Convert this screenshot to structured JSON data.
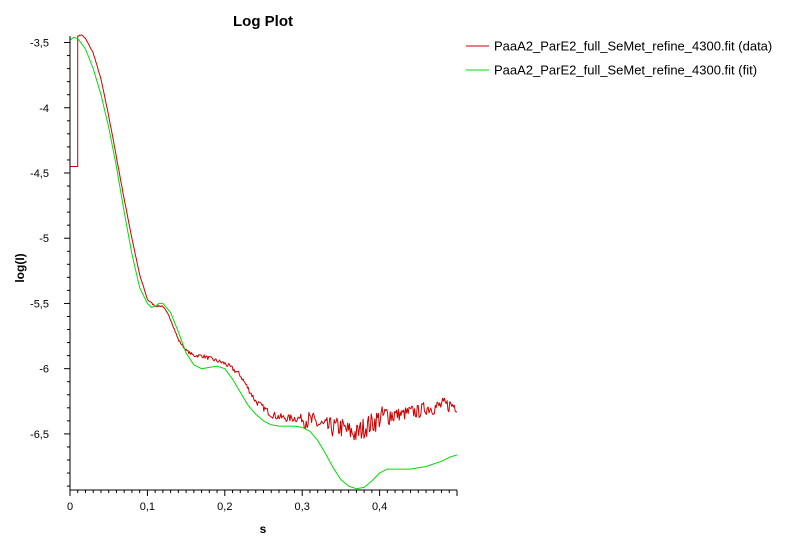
{
  "chart_data": {
    "type": "line",
    "title": "Log Plot",
    "xlabel": "s",
    "ylabel": "log(I)",
    "xlim": [
      0,
      0.5
    ],
    "ylim": [
      -6.93,
      -3.45
    ],
    "grid": false,
    "legend_position": "top-right",
    "x_ticks": [
      {
        "value": 0,
        "label": "0"
      },
      {
        "value": 0.1,
        "label": "0,1"
      },
      {
        "value": 0.2,
        "label": "0,2"
      },
      {
        "value": 0.3,
        "label": "0,3"
      },
      {
        "value": 0.4,
        "label": "0,4"
      }
    ],
    "y_ticks": [
      {
        "value": -3.5,
        "label": "-3,5"
      },
      {
        "value": -4,
        "label": "-4"
      },
      {
        "value": -4.5,
        "label": "-4,5"
      },
      {
        "value": -5,
        "label": "-5"
      },
      {
        "value": -5.5,
        "label": "-5,5"
      },
      {
        "value": -6,
        "label": "-6"
      },
      {
        "value": -6.5,
        "label": "-6,5"
      }
    ],
    "series": [
      {
        "name": "PaaA2_ParE2_full_SeMet_refine_4300.fit (data)",
        "color": "#cc0000",
        "style": "noisy",
        "x": [
          0,
          0,
          0.01,
          0.01,
          0.015,
          0.02,
          0.03,
          0.04,
          0.05,
          0.06,
          0.07,
          0.08,
          0.09,
          0.1,
          0.11,
          0.12,
          0.13,
          0.14,
          0.15,
          0.16,
          0.17,
          0.18,
          0.19,
          0.2,
          0.21,
          0.22,
          0.23,
          0.24,
          0.25,
          0.26,
          0.27,
          0.28,
          0.29,
          0.3,
          0.31,
          0.32,
          0.33,
          0.34,
          0.35,
          0.36,
          0.37,
          0.38,
          0.39,
          0.4,
          0.41,
          0.42,
          0.43,
          0.44,
          0.45,
          0.46,
          0.47,
          0.48,
          0.49,
          0.5
        ],
        "y": [
          -4.45,
          -4.45,
          -4.45,
          -3.45,
          -3.44,
          -3.47,
          -3.58,
          -3.78,
          -4.06,
          -4.38,
          -4.7,
          -5.0,
          -5.28,
          -5.47,
          -5.52,
          -5.52,
          -5.62,
          -5.78,
          -5.86,
          -5.9,
          -5.9,
          -5.92,
          -5.94,
          -5.96,
          -6.0,
          -6.05,
          -6.15,
          -6.25,
          -6.3,
          -6.35,
          -6.37,
          -6.38,
          -6.38,
          -6.38,
          -6.4,
          -6.42,
          -6.45,
          -6.45,
          -6.45,
          -6.48,
          -6.5,
          -6.45,
          -6.42,
          -6.38,
          -6.35,
          -6.35,
          -6.35,
          -6.33,
          -6.33,
          -6.3,
          -6.3,
          -6.28,
          -6.28,
          -6.28
        ]
      },
      {
        "name": "PaaA2_ParE2_full_SeMet_refine_4300.fit (fit)",
        "color": "#00dd00",
        "style": "smooth",
        "x": [
          0,
          0.005,
          0.01,
          0.02,
          0.03,
          0.04,
          0.05,
          0.06,
          0.07,
          0.08,
          0.09,
          0.1,
          0.105,
          0.11,
          0.115,
          0.12,
          0.13,
          0.14,
          0.15,
          0.16,
          0.17,
          0.18,
          0.19,
          0.2,
          0.21,
          0.22,
          0.23,
          0.24,
          0.25,
          0.26,
          0.27,
          0.28,
          0.29,
          0.3,
          0.31,
          0.32,
          0.33,
          0.34,
          0.35,
          0.36,
          0.37,
          0.38,
          0.39,
          0.4,
          0.41,
          0.42,
          0.43,
          0.44,
          0.45,
          0.46,
          0.47,
          0.48,
          0.49,
          0.5
        ],
        "y": [
          -3.48,
          -3.46,
          -3.47,
          -3.55,
          -3.7,
          -3.9,
          -4.15,
          -4.45,
          -4.8,
          -5.12,
          -5.38,
          -5.5,
          -5.53,
          -5.52,
          -5.5,
          -5.5,
          -5.57,
          -5.72,
          -5.88,
          -5.97,
          -6.0,
          -5.99,
          -5.98,
          -6.0,
          -6.08,
          -6.18,
          -6.28,
          -6.35,
          -6.4,
          -6.43,
          -6.44,
          -6.44,
          -6.44,
          -6.45,
          -6.48,
          -6.55,
          -6.65,
          -6.76,
          -6.85,
          -6.9,
          -6.92,
          -6.91,
          -6.86,
          -6.8,
          -6.77,
          -6.77,
          -6.77,
          -6.77,
          -6.76,
          -6.75,
          -6.73,
          -6.71,
          -6.68,
          -6.66
        ]
      }
    ]
  }
}
